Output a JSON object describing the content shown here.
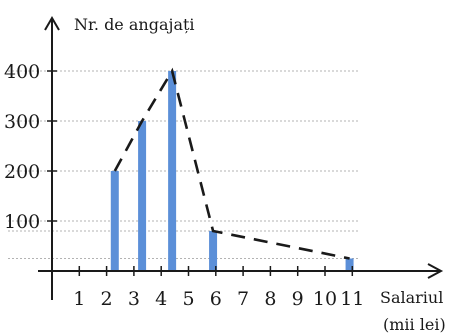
{
  "chart_data": {
    "type": "bar",
    "ylabel": "Nr. de angajați",
    "xlabel_line1": "Salariul",
    "xlabel_line2": "(mii lei)",
    "x_ticks": [
      "1",
      "2",
      "3",
      "4",
      "5",
      "6",
      "7",
      "8",
      "9",
      "10",
      "11"
    ],
    "y_ticks": [
      "100",
      "200",
      "300",
      "400"
    ],
    "xlim": [
      0,
      11.5
    ],
    "ylim": [
      0,
      420
    ],
    "bars": [
      {
        "x": 2.3,
        "value": 200
      },
      {
        "x": 3.3,
        "value": 300
      },
      {
        "x": 4.4,
        "value": 400
      },
      {
        "x": 5.9,
        "value": 80
      },
      {
        "x": 10.9,
        "value": 25
      }
    ],
    "polygon": [
      {
        "x": 2.3,
        "y": 200
      },
      {
        "x": 3.3,
        "y": 300
      },
      {
        "x": 4.4,
        "y": 400
      },
      {
        "x": 5.9,
        "y": 80
      },
      {
        "x": 10.9,
        "y": 25
      }
    ],
    "gridlines_y": [
      25,
      80,
      100,
      200,
      300,
      400
    ],
    "colors": {
      "bar": "#5b8fd8",
      "line": "#1a1a1a"
    }
  }
}
